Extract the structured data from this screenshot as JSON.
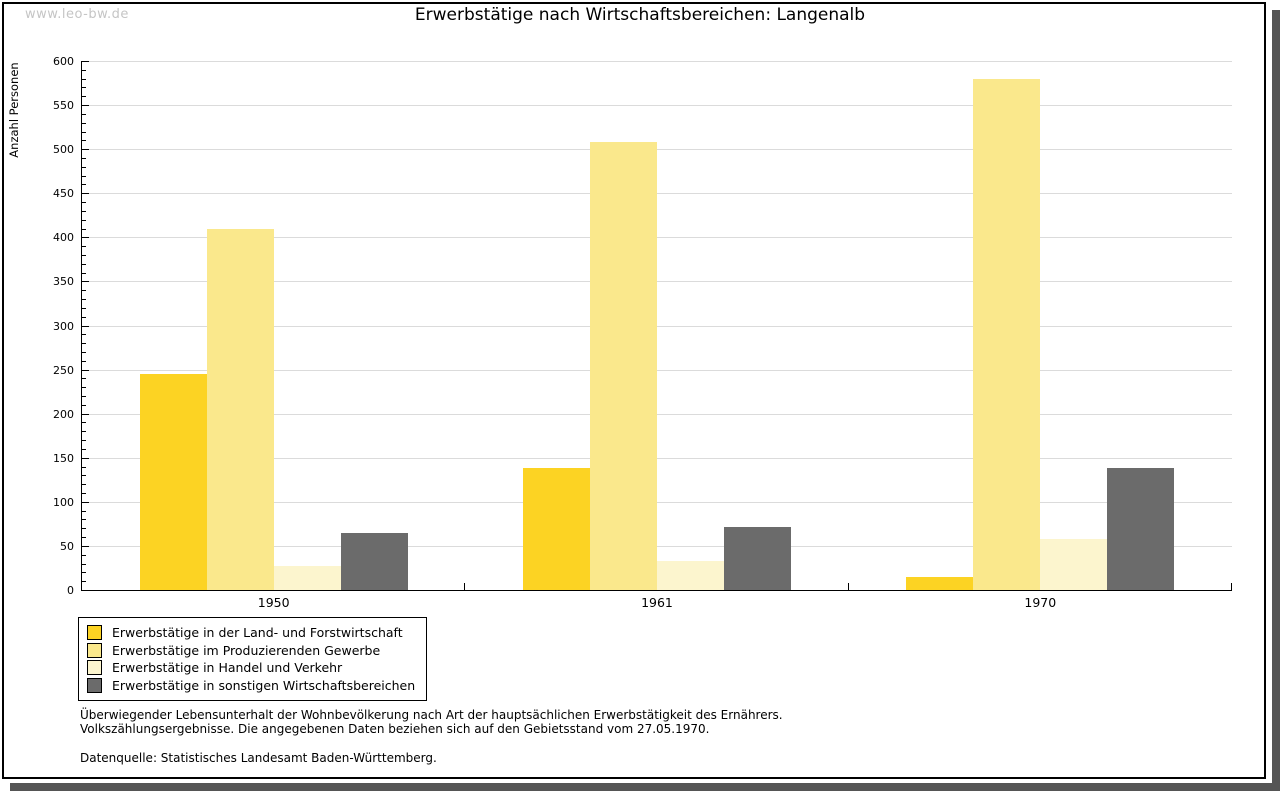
{
  "watermark": "www.leo-bw.de",
  "title": "Erwerbstätige nach Wirtschaftsbereichen: Langenalb",
  "chart_data": {
    "type": "bar",
    "title": "Erwerbstätige nach Wirtschaftsbereichen: Langenalb",
    "xlabel": "",
    "ylabel": "Anzahl Personen",
    "ylim": [
      0,
      600
    ],
    "ytick_step": 50,
    "minor_tick_step": 10,
    "grid": true,
    "legend_position": "bottom-left",
    "categories": [
      "1950",
      "1961",
      "1970"
    ],
    "series": [
      {
        "name": "Erwerbstätige in der Land- und Forstwirtschaft",
        "color": "#FCD323",
        "values": [
          245,
          138,
          15
        ]
      },
      {
        "name": "Erwerbstätige im Produzierenden Gewerbe",
        "color": "#FAE88C",
        "values": [
          410,
          508,
          580
        ]
      },
      {
        "name": "Erwerbstätige in Handel und Verkehr",
        "color": "#FCF5CE",
        "values": [
          27,
          33,
          58
        ]
      },
      {
        "name": "Erwerbstätige in sonstigen Wirtschaftsbereichen",
        "color": "#6B6B6B",
        "values": [
          65,
          71,
          138
        ]
      }
    ]
  },
  "footnotes": {
    "line1": "Überwiegender Lebensunterhalt der Wohnbevölkerung nach Art der hauptsächlichen Erwerbstätigkeit des Ernährers.",
    "line2": "Volkszählungsergebnisse. Die angegebenen Daten beziehen sich auf den Gebietsstand vom 27.05.1970.",
    "source": "Datenquelle: Statistisches Landesamt Baden-Württemberg."
  },
  "colors": {
    "grid": "#DBDBDB",
    "axis": "#000000",
    "watermark": "#C5C5C5",
    "shadow": "#555555",
    "background": "#FFFFFF"
  }
}
